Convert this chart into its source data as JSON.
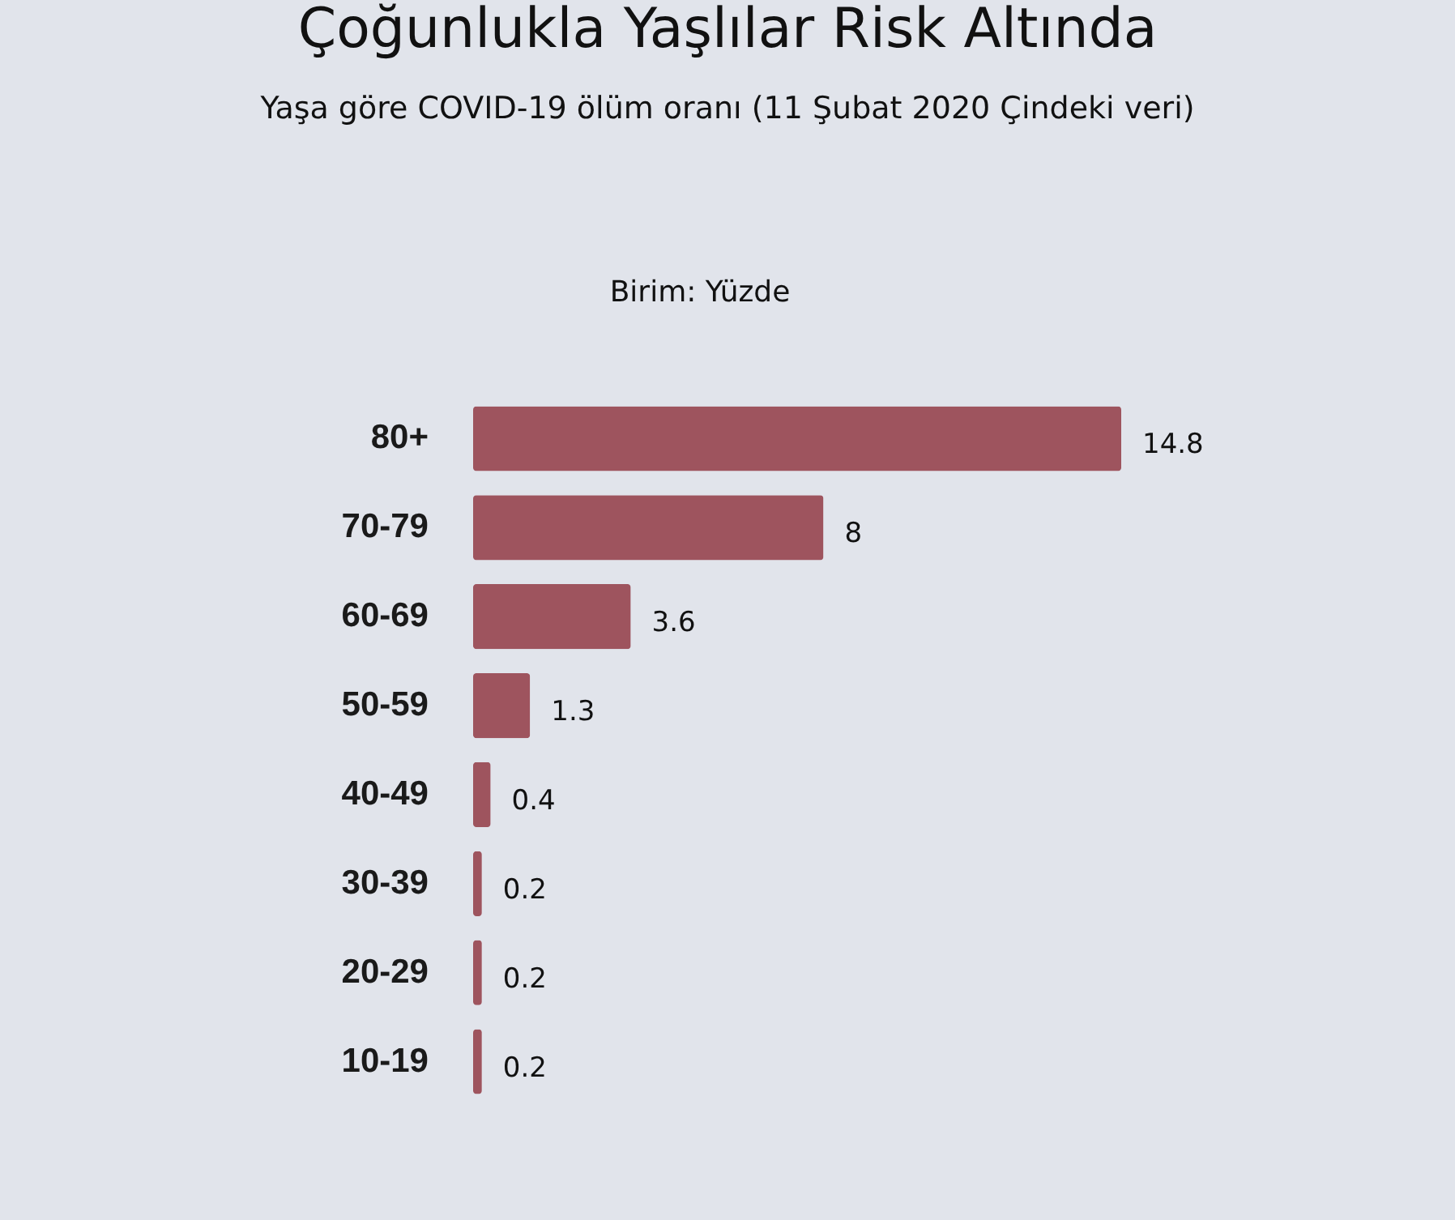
{
  "chart_data": {
    "type": "bar",
    "orientation": "horizontal",
    "title": "Çoğunlukla Yaşlılar Risk Altında",
    "subtitle": "Yaşa göre COVID-19 ölüm oranı (11 Şubat 2020 Çindeki veri)",
    "annotations": [
      "Birim: Yüzde"
    ],
    "categories": [
      "80+",
      "70-79",
      "60-69",
      "50-59",
      "40-49",
      "30-39",
      "20-29",
      "10-19"
    ],
    "values": [
      14.8,
      8,
      3.6,
      1.3,
      0.4,
      0.2,
      0.2,
      0.2
    ],
    "color": "#9e545e",
    "data_labels": true
  }
}
